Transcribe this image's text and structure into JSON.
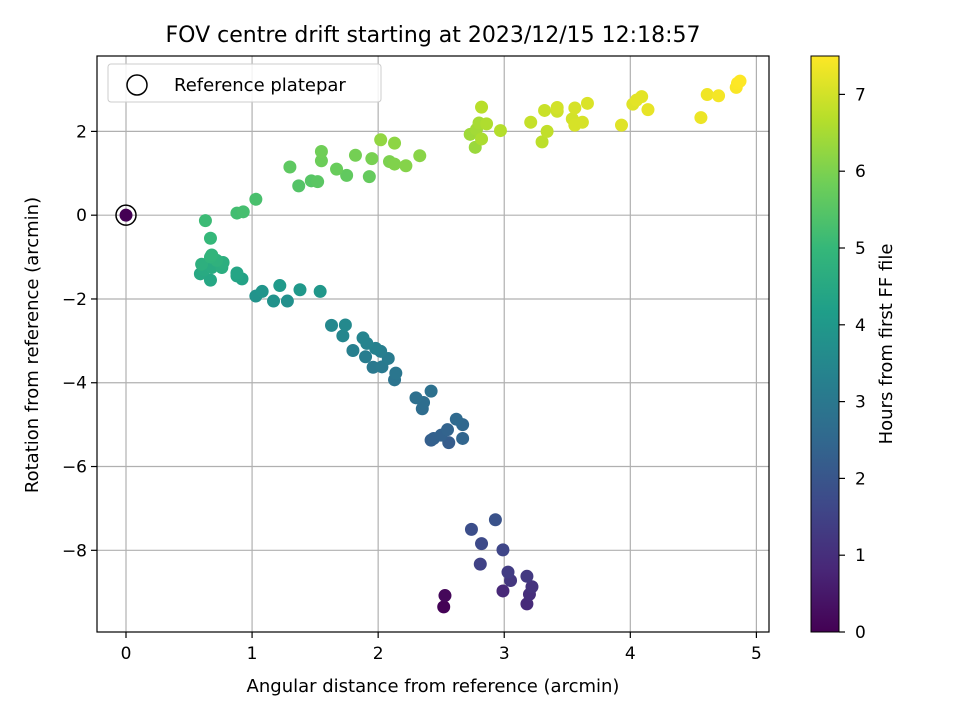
{
  "chart_data": {
    "type": "scatter",
    "title": "FOV centre drift starting at 2023/12/15 12:18:57",
    "xlabel": "Angular distance from reference (arcmin)",
    "ylabel": "Rotation from reference (arcmin)",
    "xlim": [
      -0.23,
      5.1
    ],
    "ylim": [
      -9.95,
      3.8
    ],
    "xticks": [
      0,
      1,
      2,
      3,
      4,
      5
    ],
    "yticks": [
      -8,
      -6,
      -4,
      -2,
      0,
      2
    ],
    "grid": true,
    "legend": {
      "position": "upper-left",
      "label": "Reference platepar"
    },
    "reference_point": {
      "x": 0,
      "y": 0,
      "hours": 0
    },
    "colorbar": {
      "label": "Hours from first FF file",
      "range": [
        0,
        7.5
      ],
      "ticks": [
        0,
        1,
        2,
        3,
        4,
        5,
        6,
        7
      ],
      "colormap": [
        "#440154",
        "#482878",
        "#3e4989",
        "#31688e",
        "#26828e",
        "#1f9e89",
        "#35b779",
        "#6ece58",
        "#b5de2b",
        "#fde725"
      ]
    },
    "series": [
      {
        "points": [
          {
            "x": 2.52,
            "y": -9.35,
            "h": 0.05
          },
          {
            "x": 2.53,
            "y": -9.08,
            "h": 0.15
          },
          {
            "x": 2.99,
            "y": -8.97,
            "h": 0.85
          },
          {
            "x": 3.18,
            "y": -9.28,
            "h": 0.9
          },
          {
            "x": 3.2,
            "y": -9.05,
            "h": 1.0
          },
          {
            "x": 3.22,
            "y": -8.87,
            "h": 1.1
          },
          {
            "x": 3.05,
            "y": -8.72,
            "h": 1.2
          },
          {
            "x": 3.18,
            "y": -8.62,
            "h": 1.25
          },
          {
            "x": 3.03,
            "y": -8.52,
            "h": 1.35
          },
          {
            "x": 2.81,
            "y": -8.33,
            "h": 1.5
          },
          {
            "x": 2.99,
            "y": -7.99,
            "h": 1.6
          },
          {
            "x": 2.82,
            "y": -7.84,
            "h": 1.7
          },
          {
            "x": 2.74,
            "y": -7.5,
            "h": 1.8
          },
          {
            "x": 2.93,
            "y": -7.27,
            "h": 1.9
          },
          {
            "x": 2.56,
            "y": -5.43,
            "h": 2.2
          },
          {
            "x": 2.42,
            "y": -5.37,
            "h": 2.25
          },
          {
            "x": 2.44,
            "y": -5.33,
            "h": 2.3
          },
          {
            "x": 2.5,
            "y": -5.25,
            "h": 2.35
          },
          {
            "x": 2.55,
            "y": -5.12,
            "h": 2.4
          },
          {
            "x": 2.67,
            "y": -5.33,
            "h": 2.45
          },
          {
            "x": 2.67,
            "y": -5.0,
            "h": 2.5
          },
          {
            "x": 2.62,
            "y": -4.87,
            "h": 2.55
          },
          {
            "x": 2.35,
            "y": -4.62,
            "h": 2.65
          },
          {
            "x": 2.36,
            "y": -4.47,
            "h": 2.7
          },
          {
            "x": 2.3,
            "y": -4.36,
            "h": 2.75
          },
          {
            "x": 2.42,
            "y": -4.2,
            "h": 2.8
          },
          {
            "x": 2.13,
            "y": -3.93,
            "h": 2.9
          },
          {
            "x": 2.14,
            "y": -3.77,
            "h": 2.95
          },
          {
            "x": 1.96,
            "y": -3.63,
            "h": 3.0
          },
          {
            "x": 2.03,
            "y": -3.62,
            "h": 3.05
          },
          {
            "x": 2.08,
            "y": -3.42,
            "h": 3.1
          },
          {
            "x": 1.9,
            "y": -3.38,
            "h": 3.15
          },
          {
            "x": 2.02,
            "y": -3.25,
            "h": 3.2
          },
          {
            "x": 1.8,
            "y": -3.23,
            "h": 3.25
          },
          {
            "x": 1.98,
            "y": -3.18,
            "h": 3.3
          },
          {
            "x": 1.91,
            "y": -3.06,
            "h": 3.35
          },
          {
            "x": 1.88,
            "y": -2.93,
            "h": 3.4
          },
          {
            "x": 1.72,
            "y": -2.88,
            "h": 3.45
          },
          {
            "x": 1.63,
            "y": -2.63,
            "h": 3.5
          },
          {
            "x": 1.74,
            "y": -2.62,
            "h": 3.55
          },
          {
            "x": 1.28,
            "y": -2.05,
            "h": 3.75
          },
          {
            "x": 1.17,
            "y": -2.05,
            "h": 3.8
          },
          {
            "x": 1.03,
            "y": -1.93,
            "h": 3.85
          },
          {
            "x": 1.08,
            "y": -1.82,
            "h": 3.9
          },
          {
            "x": 1.54,
            "y": -1.82,
            "h": 3.95
          },
          {
            "x": 1.38,
            "y": -1.78,
            "h": 4.0
          },
          {
            "x": 1.22,
            "y": -1.68,
            "h": 4.05
          },
          {
            "x": 0.92,
            "y": -1.52,
            "h": 4.3
          },
          {
            "x": 0.88,
            "y": -1.45,
            "h": 4.35
          },
          {
            "x": 0.88,
            "y": -1.38,
            "h": 4.4
          },
          {
            "x": 0.67,
            "y": -1.55,
            "h": 4.45
          },
          {
            "x": 0.59,
            "y": -1.4,
            "h": 4.5
          },
          {
            "x": 0.62,
            "y": -1.3,
            "h": 4.55
          },
          {
            "x": 0.68,
            "y": -1.25,
            "h": 4.6
          },
          {
            "x": 0.76,
            "y": -1.25,
            "h": 4.65
          },
          {
            "x": 0.77,
            "y": -1.13,
            "h": 4.7
          },
          {
            "x": 0.6,
            "y": -1.17,
            "h": 4.75
          },
          {
            "x": 0.72,
            "y": -1.08,
            "h": 4.8
          },
          {
            "x": 0.67,
            "y": -1.0,
            "h": 4.85
          },
          {
            "x": 0.68,
            "y": -0.95,
            "h": 4.9
          },
          {
            "x": 0.67,
            "y": -0.55,
            "h": 5.0
          },
          {
            "x": 0.63,
            "y": -0.13,
            "h": 5.1
          },
          {
            "x": 0.88,
            "y": 0.05,
            "h": 5.2
          },
          {
            "x": 0.93,
            "y": 0.08,
            "h": 5.25
          },
          {
            "x": 1.03,
            "y": 0.38,
            "h": 5.3
          },
          {
            "x": 1.37,
            "y": 0.7,
            "h": 5.45
          },
          {
            "x": 1.47,
            "y": 0.82,
            "h": 5.5
          },
          {
            "x": 1.52,
            "y": 0.8,
            "h": 5.55
          },
          {
            "x": 1.3,
            "y": 1.15,
            "h": 5.6
          },
          {
            "x": 1.75,
            "y": 0.95,
            "h": 5.65
          },
          {
            "x": 1.93,
            "y": 0.92,
            "h": 5.7
          },
          {
            "x": 1.67,
            "y": 1.1,
            "h": 5.75
          },
          {
            "x": 1.55,
            "y": 1.3,
            "h": 5.8
          },
          {
            "x": 1.55,
            "y": 1.52,
            "h": 5.85
          },
          {
            "x": 1.82,
            "y": 1.43,
            "h": 5.9
          },
          {
            "x": 1.95,
            "y": 1.35,
            "h": 5.95
          },
          {
            "x": 2.09,
            "y": 1.28,
            "h": 6.0
          },
          {
            "x": 2.13,
            "y": 1.22,
            "h": 6.05
          },
          {
            "x": 2.22,
            "y": 1.18,
            "h": 6.1
          },
          {
            "x": 2.33,
            "y": 1.42,
            "h": 6.15
          },
          {
            "x": 2.13,
            "y": 1.72,
            "h": 6.2
          },
          {
            "x": 2.02,
            "y": 1.8,
            "h": 6.25
          },
          {
            "x": 2.77,
            "y": 1.62,
            "h": 6.35
          },
          {
            "x": 2.73,
            "y": 1.93,
            "h": 6.4
          },
          {
            "x": 2.78,
            "y": 2.05,
            "h": 6.45
          },
          {
            "x": 2.8,
            "y": 2.2,
            "h": 6.5
          },
          {
            "x": 2.82,
            "y": 1.82,
            "h": 6.55
          },
          {
            "x": 2.86,
            "y": 2.18,
            "h": 6.6
          },
          {
            "x": 2.97,
            "y": 2.02,
            "h": 6.65
          },
          {
            "x": 2.82,
            "y": 2.58,
            "h": 6.7
          },
          {
            "x": 3.3,
            "y": 1.75,
            "h": 6.75
          },
          {
            "x": 3.34,
            "y": 2.0,
            "h": 6.8
          },
          {
            "x": 3.21,
            "y": 2.22,
            "h": 6.85
          },
          {
            "x": 3.32,
            "y": 2.5,
            "h": 6.9
          },
          {
            "x": 3.42,
            "y": 2.48,
            "h": 6.95
          },
          {
            "x": 3.42,
            "y": 2.57,
            "h": 7.0
          },
          {
            "x": 3.54,
            "y": 2.3,
            "h": 7.0
          },
          {
            "x": 3.56,
            "y": 2.15,
            "h": 7.05
          },
          {
            "x": 3.62,
            "y": 2.22,
            "h": 7.05
          },
          {
            "x": 3.56,
            "y": 2.56,
            "h": 7.05
          },
          {
            "x": 3.66,
            "y": 2.67,
            "h": 7.1
          },
          {
            "x": 3.93,
            "y": 2.15,
            "h": 7.15
          },
          {
            "x": 4.02,
            "y": 2.65,
            "h": 7.15
          },
          {
            "x": 4.05,
            "y": 2.75,
            "h": 7.2
          },
          {
            "x": 4.09,
            "y": 2.83,
            "h": 7.2
          },
          {
            "x": 4.14,
            "y": 2.52,
            "h": 7.25
          },
          {
            "x": 4.56,
            "y": 2.33,
            "h": 7.3
          },
          {
            "x": 4.61,
            "y": 2.88,
            "h": 7.35
          },
          {
            "x": 4.7,
            "y": 2.85,
            "h": 7.4
          },
          {
            "x": 4.84,
            "y": 3.05,
            "h": 7.45
          },
          {
            "x": 4.85,
            "y": 3.15,
            "h": 7.48
          },
          {
            "x": 4.87,
            "y": 3.2,
            "h": 7.5
          }
        ]
      }
    ]
  }
}
